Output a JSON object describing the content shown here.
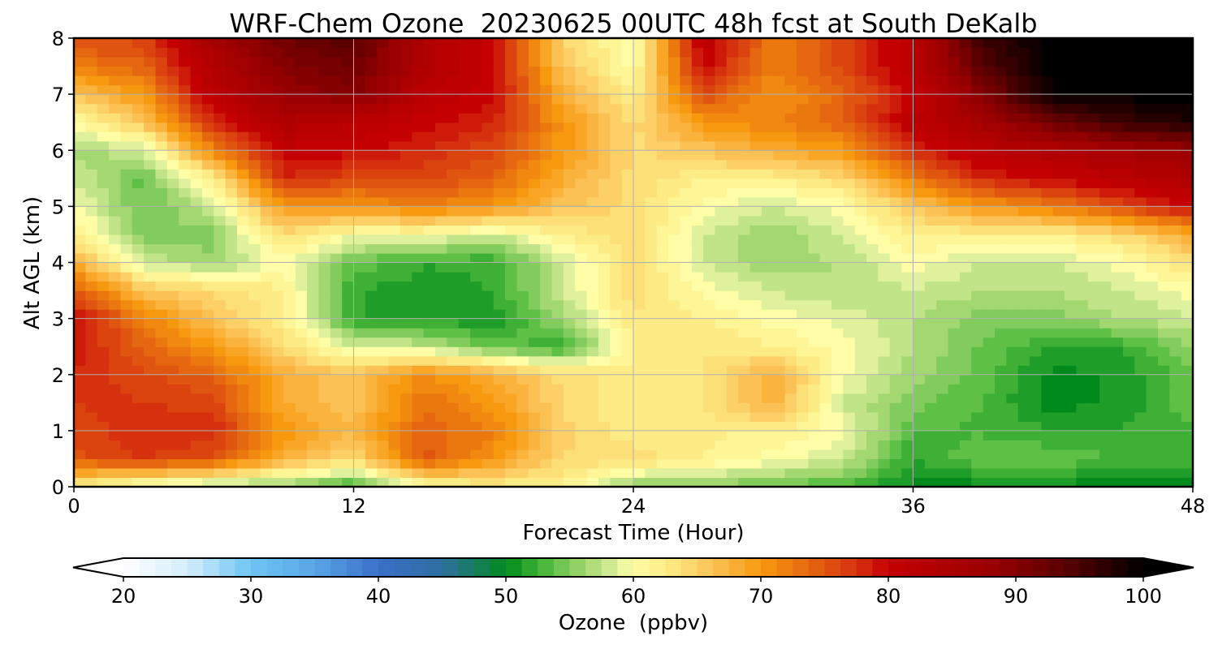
{
  "chart_data": {
    "type": "heatmap",
    "title": "WRF-Chem Ozone  20230625 00UTC 48h fcst at South DeKalb",
    "xlabel": "Forecast Time (Hour)",
    "ylabel": "Alt AGL (km)",
    "xlim": [
      0,
      48
    ],
    "ylim": [
      0,
      8
    ],
    "x_ticks": [
      "0",
      "12",
      "24",
      "36",
      "48"
    ],
    "x_tick_values": [
      0,
      12,
      24,
      36,
      48
    ],
    "y_ticks": [
      "0",
      "1",
      "2",
      "3",
      "4",
      "5",
      "6",
      "7",
      "8"
    ],
    "y_tick_values": [
      0,
      1,
      2,
      3,
      4,
      5,
      6,
      7,
      8
    ],
    "grid": true,
    "x": [
      0,
      3,
      6,
      9,
      12,
      15,
      18,
      21,
      24,
      27,
      30,
      33,
      36,
      39,
      42,
      45,
      48
    ],
    "y": [
      0,
      0.5,
      1,
      1.5,
      2,
      2.5,
      3,
      3.5,
      4,
      4.5,
      5,
      5.5,
      6,
      6.5,
      7,
      7.5,
      8
    ],
    "values": [
      [
        62,
        58,
        56,
        55,
        52,
        60,
        62,
        62,
        55,
        55,
        54,
        53,
        50,
        50,
        50,
        50,
        50
      ],
      [
        75,
        77,
        75,
        68,
        64,
        75,
        70,
        64,
        64,
        62,
        60,
        58,
        52,
        54,
        54,
        53,
        53
      ],
      [
        76,
        78,
        78,
        70,
        67,
        74,
        72,
        65,
        62,
        62,
        62,
        60,
        53,
        53,
        52,
        52,
        53
      ],
      [
        77,
        77,
        76,
        68,
        66,
        73,
        70,
        64,
        62,
        63,
        68,
        58,
        55,
        53,
        50,
        51,
        54
      ],
      [
        78,
        76,
        74,
        68,
        66,
        71,
        68,
        64,
        62,
        63,
        68,
        60,
        56,
        54,
        50,
        51,
        54
      ],
      [
        79,
        74,
        70,
        64,
        58,
        58,
        54,
        52,
        62,
        63,
        62,
        60,
        57,
        54,
        52,
        52,
        56
      ],
      [
        80,
        72,
        66,
        62,
        52,
        51,
        51,
        56,
        63,
        62,
        60,
        59,
        57,
        55,
        55,
        57,
        58
      ],
      [
        75,
        66,
        64,
        62,
        52,
        51,
        52,
        58,
        64,
        60,
        58,
        57,
        58,
        57,
        57,
        58,
        60
      ],
      [
        68,
        58,
        56,
        60,
        54,
        52,
        52,
        58,
        64,
        58,
        56,
        57,
        60,
        58,
        58,
        60,
        64
      ],
      [
        62,
        55,
        55,
        64,
        60,
        60,
        58,
        62,
        64,
        58,
        56,
        58,
        62,
        62,
        62,
        64,
        68
      ],
      [
        60,
        54,
        58,
        70,
        70,
        72,
        70,
        66,
        64,
        60,
        58,
        60,
        66,
        70,
        72,
        76,
        80
      ],
      [
        58,
        54,
        62,
        78,
        76,
        76,
        74,
        68,
        64,
        62,
        62,
        64,
        72,
        78,
        80,
        82,
        84
      ],
      [
        56,
        58,
        72,
        80,
        80,
        78,
        76,
        70,
        64,
        66,
        68,
        70,
        78,
        82,
        84,
        86,
        88
      ],
      [
        60,
        66,
        78,
        84,
        82,
        80,
        78,
        70,
        64,
        70,
        72,
        74,
        82,
        86,
        92,
        96,
        98
      ],
      [
        66,
        70,
        82,
        88,
        90,
        82,
        80,
        68,
        62,
        76,
        70,
        74,
        80,
        90,
        100,
        100,
        100
      ],
      [
        72,
        74,
        84,
        90,
        92,
        84,
        80,
        66,
        60,
        80,
        72,
        76,
        82,
        94,
        100,
        100,
        100
      ],
      [
        76,
        76,
        86,
        92,
        94,
        84,
        80,
        64,
        60,
        82,
        72,
        76,
        82,
        96,
        100,
        100,
        100
      ]
    ],
    "colorbar": {
      "label": "Ozone  (ppbv)",
      "vmin": 20,
      "vmax": 100,
      "ticks": [
        "20",
        "30",
        "40",
        "50",
        "60",
        "70",
        "80",
        "90",
        "100"
      ],
      "tick_values": [
        20,
        30,
        40,
        50,
        60,
        70,
        80,
        90,
        100
      ],
      "extend": "both",
      "colors": [
        {
          "v": 20,
          "c": "#ffffff"
        },
        {
          "v": 25,
          "c": "#d4eefa"
        },
        {
          "v": 30,
          "c": "#6cc5f4"
        },
        {
          "v": 35,
          "c": "#5aa5e6"
        },
        {
          "v": 40,
          "c": "#3a6fc8"
        },
        {
          "v": 45,
          "c": "#2f6fa0"
        },
        {
          "v": 50,
          "c": "#008a1c"
        },
        {
          "v": 53,
          "c": "#4ab83a"
        },
        {
          "v": 56,
          "c": "#9cd66a"
        },
        {
          "v": 58.5,
          "c": "#d8ee9a"
        },
        {
          "v": 60,
          "c": "#fffea6"
        },
        {
          "v": 63,
          "c": "#fde880"
        },
        {
          "v": 66,
          "c": "#fcc45a"
        },
        {
          "v": 70,
          "c": "#f7990e"
        },
        {
          "v": 74,
          "c": "#e46410"
        },
        {
          "v": 78,
          "c": "#d42a0e"
        },
        {
          "v": 80,
          "c": "#c40000"
        },
        {
          "v": 88,
          "c": "#9a0000"
        },
        {
          "v": 94,
          "c": "#580000"
        },
        {
          "v": 100,
          "c": "#000000"
        }
      ]
    }
  }
}
